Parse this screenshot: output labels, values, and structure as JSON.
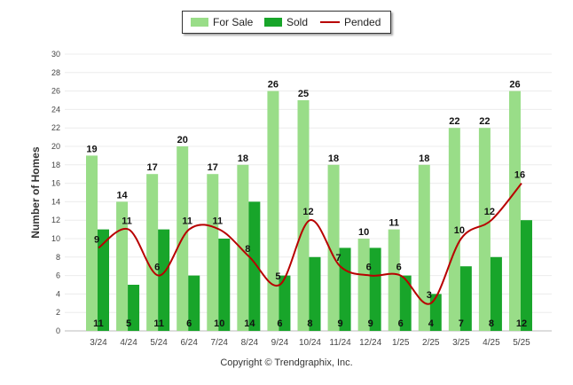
{
  "chart_data": {
    "type": "bar",
    "ylabel": "Number of Homes",
    "ylim": [
      0,
      30
    ],
    "yticks": [
      "0",
      "2",
      "4",
      "6",
      "8",
      "10",
      "12",
      "14",
      "16",
      "18",
      "20",
      "22",
      "24",
      "26",
      "28",
      "30"
    ],
    "categories": [
      "3/24",
      "4/24",
      "5/24",
      "6/24",
      "7/24",
      "8/24",
      "9/24",
      "10/24",
      "11/24",
      "12/24",
      "1/25",
      "2/25",
      "3/25",
      "4/25",
      "5/25"
    ],
    "series": [
      {
        "name": "For Sale",
        "type": "bar",
        "color": "#99dd88",
        "values": [
          19,
          14,
          17,
          20,
          17,
          18,
          26,
          25,
          18,
          10,
          11,
          18,
          22,
          22,
          26
        ]
      },
      {
        "name": "Sold",
        "type": "bar",
        "color": "#18a52a",
        "values": [
          11,
          5,
          11,
          6,
          10,
          14,
          6,
          8,
          9,
          9,
          6,
          4,
          7,
          8,
          12
        ]
      },
      {
        "name": "Pended",
        "type": "line",
        "color": "#b80000",
        "values": [
          9,
          11,
          6,
          11,
          11,
          8,
          5,
          12,
          7,
          6,
          6,
          3,
          10,
          12,
          16
        ]
      }
    ],
    "legend_position": "top-center",
    "grid": true
  },
  "footer": {
    "copyright": "Copyright © Trendgraphix, Inc."
  }
}
